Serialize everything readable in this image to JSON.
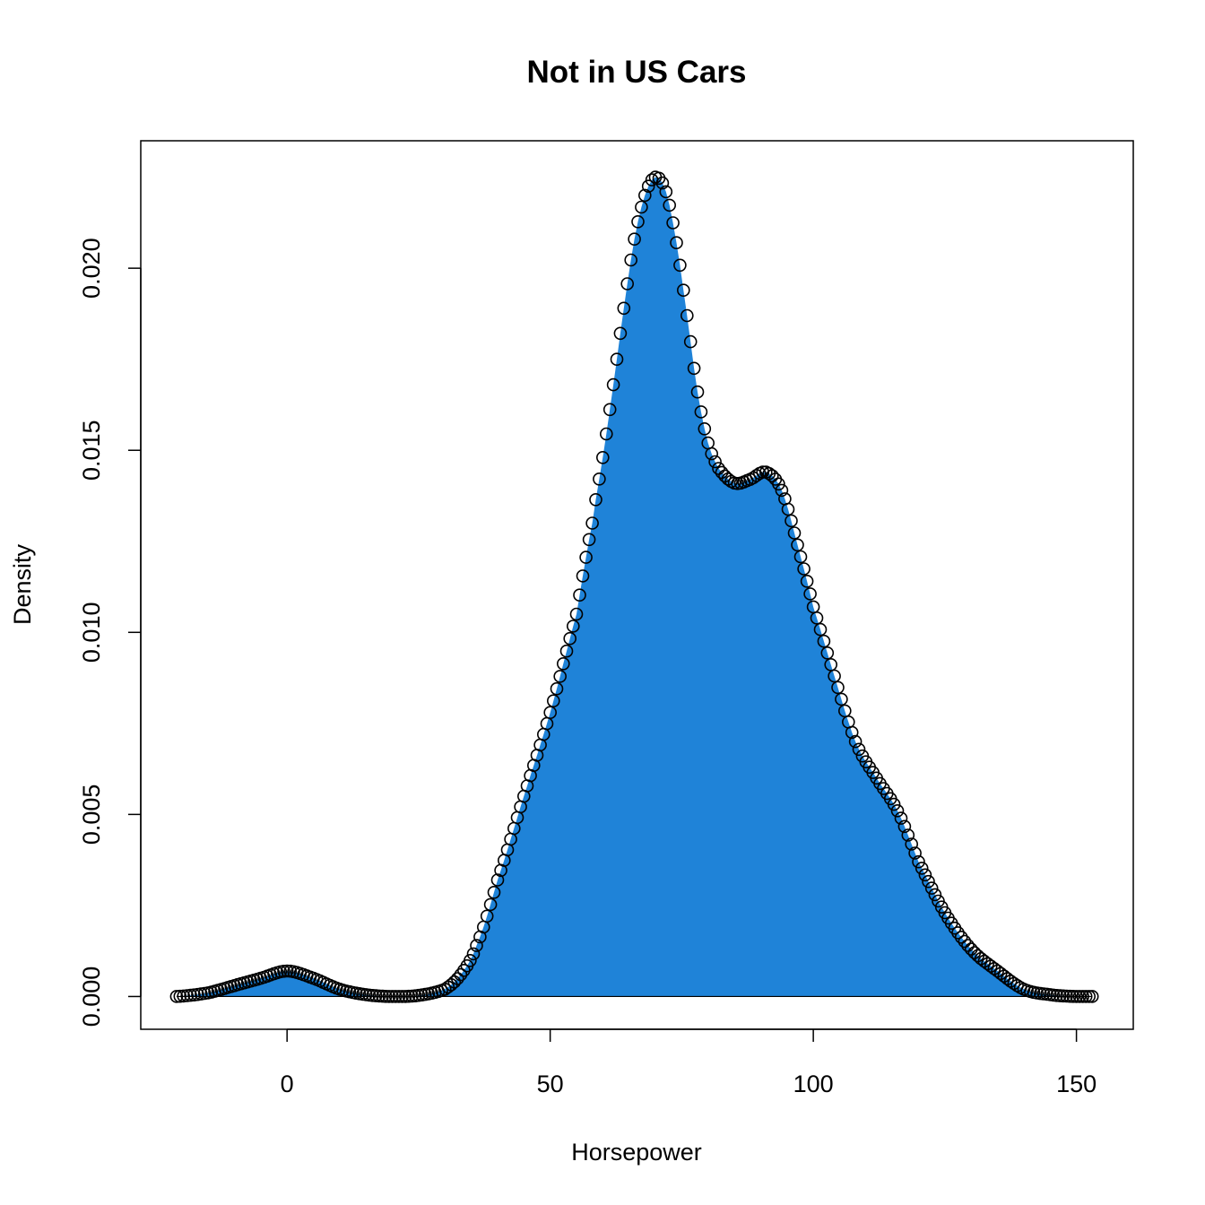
{
  "chart_data": {
    "type": "area",
    "title": "Not in US Cars",
    "xlabel": "Horsepower",
    "ylabel": "Density",
    "xlim": [
      -27.8,
      160.8
    ],
    "ylim": [
      -0.0009,
      0.0235
    ],
    "x_ticks": [
      0,
      50,
      100,
      150
    ],
    "x_tick_labels": [
      "0",
      "50",
      "100",
      "150"
    ],
    "y_ticks": [
      0.0,
      0.005,
      0.01,
      0.015,
      0.02
    ],
    "y_tick_labels": [
      "0.000",
      "0.005",
      "0.010",
      "0.015",
      "0.020"
    ],
    "grid": false,
    "fill_color": "#1f83d8",
    "marker": "open-circle",
    "series": [
      {
        "x": [
          -21,
          -15,
          -10,
          -5,
          0,
          5,
          10,
          15,
          20,
          25,
          30,
          33,
          36,
          40,
          45,
          50,
          55,
          58,
          60,
          62,
          64,
          66,
          68,
          70,
          72,
          74,
          76,
          78,
          80,
          82,
          85,
          88,
          91,
          94,
          97,
          100,
          104,
          108,
          112,
          116,
          120,
          125,
          130,
          135,
          140,
          145,
          150,
          153
        ],
        "y": [
          0.0,
          0.0001,
          0.0003,
          0.0005,
          0.0007,
          0.0005,
          0.0002,
          5e-05,
          0.0,
          3e-05,
          0.0002,
          0.0006,
          0.0014,
          0.0032,
          0.0055,
          0.0078,
          0.0105,
          0.013,
          0.0148,
          0.0168,
          0.0189,
          0.0208,
          0.022,
          0.0225,
          0.0221,
          0.0207,
          0.0187,
          0.0166,
          0.0152,
          0.0145,
          0.0141,
          0.0142,
          0.0144,
          0.0139,
          0.0124,
          0.0107,
          0.0088,
          0.007,
          0.006,
          0.0051,
          0.0037,
          0.0023,
          0.0013,
          0.0007,
          0.0002,
          5e-05,
          0.0,
          0.0
        ]
      }
    ]
  }
}
